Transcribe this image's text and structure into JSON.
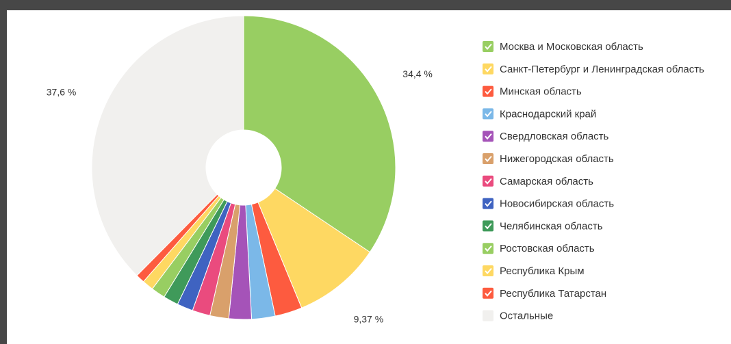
{
  "chart_data": {
    "type": "donut",
    "categories": [
      "Москва и Московская область",
      "Санкт-Петербург и Ленинградская область",
      "Минская область",
      "Краснодарский край",
      "Свердловская область",
      "Нижегородская область",
      "Самарская область",
      "Новосибирская область",
      "Челябинская область",
      "Ростовская область",
      "Республика Крым",
      "Республика Татарстан",
      "Остальные"
    ],
    "values": [
      34.4,
      9.37,
      2.9,
      2.5,
      2.4,
      2.0,
      1.9,
      1.7,
      1.6,
      1.5,
      1.2,
      0.93,
      37.6
    ],
    "value_labels": [
      "34,4 %",
      "9,37 %",
      null,
      null,
      null,
      null,
      null,
      null,
      null,
      null,
      null,
      null,
      "37,6 %"
    ],
    "colors": [
      "#98ce62",
      "#fed862",
      "#fd5b3f",
      "#7bb8e8",
      "#a553b8",
      "#d9a06b",
      "#ea4b7e",
      "#3f63c1",
      "#3f9a5a",
      "#98ce62",
      "#fed862",
      "#fd5b3f",
      "#f1f0ee"
    ],
    "legend": "right"
  }
}
